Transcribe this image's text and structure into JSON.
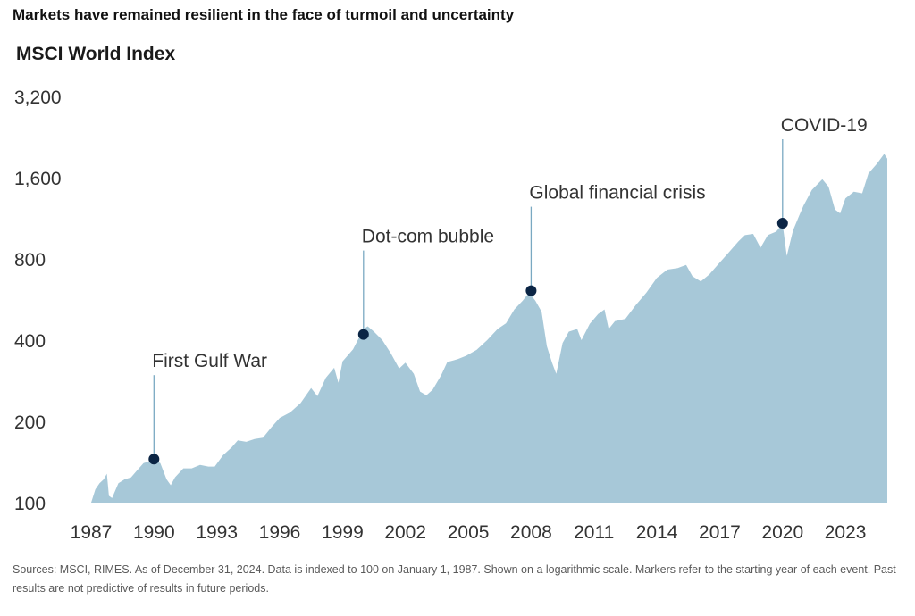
{
  "header": {
    "headline": "Markets have remained resilient in the face of turmoil and uncertainty",
    "subtitle": "MSCI World Index"
  },
  "footer": {
    "source": "Sources: MSCI, RIMES. As of December 31, 2024. Data is indexed to 100 on January 1, 1987. Shown on a logarithmic scale. Markers refer to the starting year of each event. Past results are not predictive of results in future periods."
  },
  "colors": {
    "area_fill": "#a7c8d8",
    "marker": "#0b2545",
    "leader_line": "#7aa9c2",
    "axis_text": "#333333"
  },
  "chart_data": {
    "type": "area",
    "title": "MSCI World Index",
    "xlabel": "",
    "ylabel": "",
    "y_scale": "log",
    "ylim": [
      100,
      3200
    ],
    "xlim": [
      1987,
      2025
    ],
    "grid": false,
    "y_ticks": [
      100,
      200,
      400,
      800,
      1600,
      3200
    ],
    "y_tick_labels": [
      "100",
      "200",
      "400",
      "800",
      "1,600",
      "3,200"
    ],
    "x_ticks": [
      1987,
      1990,
      1993,
      1996,
      1999,
      2002,
      2005,
      2008,
      2011,
      2014,
      2017,
      2020,
      2023
    ],
    "x_tick_labels": [
      "1987",
      "1990",
      "1993",
      "1996",
      "1999",
      "2002",
      "2005",
      "2008",
      "2011",
      "2014",
      "2017",
      "2020",
      "2023"
    ],
    "series": [
      {
        "points": [
          [
            1987.0,
            100
          ],
          [
            1987.2,
            112
          ],
          [
            1987.4,
            118
          ],
          [
            1987.6,
            122
          ],
          [
            1987.75,
            128
          ],
          [
            1987.85,
            106
          ],
          [
            1988.0,
            104
          ],
          [
            1988.3,
            118
          ],
          [
            1988.6,
            122
          ],
          [
            1988.9,
            124
          ],
          [
            1989.2,
            132
          ],
          [
            1989.5,
            140
          ],
          [
            1989.75,
            142
          ],
          [
            1990.0,
            144
          ],
          [
            1990.3,
            140
          ],
          [
            1990.6,
            122
          ],
          [
            1990.8,
            116
          ],
          [
            1991.0,
            124
          ],
          [
            1991.4,
            134
          ],
          [
            1991.8,
            134
          ],
          [
            1992.2,
            138
          ],
          [
            1992.6,
            136
          ],
          [
            1992.9,
            136
          ],
          [
            1993.3,
            150
          ],
          [
            1993.7,
            160
          ],
          [
            1994.0,
            170
          ],
          [
            1994.4,
            168
          ],
          [
            1994.8,
            172
          ],
          [
            1995.2,
            174
          ],
          [
            1995.6,
            190
          ],
          [
            1996.0,
            206
          ],
          [
            1996.5,
            216
          ],
          [
            1997.0,
            234
          ],
          [
            1997.5,
            266
          ],
          [
            1997.8,
            248
          ],
          [
            1998.2,
            290
          ],
          [
            1998.6,
            316
          ],
          [
            1998.8,
            278
          ],
          [
            1999.0,
            334
          ],
          [
            1999.5,
            370
          ],
          [
            2000.0,
            440
          ],
          [
            2000.2,
            450
          ],
          [
            2000.5,
            430
          ],
          [
            2000.9,
            400
          ],
          [
            2001.3,
            358
          ],
          [
            2001.7,
            314
          ],
          [
            2002.0,
            330
          ],
          [
            2002.4,
            300
          ],
          [
            2002.7,
            258
          ],
          [
            2003.0,
            250
          ],
          [
            2003.3,
            262
          ],
          [
            2003.7,
            296
          ],
          [
            2004.0,
            332
          ],
          [
            2004.5,
            340
          ],
          [
            2004.9,
            350
          ],
          [
            2005.4,
            368
          ],
          [
            2005.9,
            400
          ],
          [
            2006.4,
            440
          ],
          [
            2006.8,
            462
          ],
          [
            2007.2,
            520
          ],
          [
            2007.6,
            560
          ],
          [
            2007.9,
            600
          ],
          [
            2008.2,
            560
          ],
          [
            2008.5,
            510
          ],
          [
            2008.75,
            380
          ],
          [
            2009.0,
            330
          ],
          [
            2009.2,
            300
          ],
          [
            2009.5,
            390
          ],
          [
            2009.8,
            430
          ],
          [
            2010.2,
            440
          ],
          [
            2010.4,
            400
          ],
          [
            2010.8,
            460
          ],
          [
            2011.2,
            500
          ],
          [
            2011.5,
            520
          ],
          [
            2011.7,
            440
          ],
          [
            2012.0,
            470
          ],
          [
            2012.5,
            480
          ],
          [
            2013.0,
            540
          ],
          [
            2013.5,
            600
          ],
          [
            2014.0,
            680
          ],
          [
            2014.5,
            730
          ],
          [
            2015.0,
            740
          ],
          [
            2015.4,
            760
          ],
          [
            2015.7,
            690
          ],
          [
            2016.1,
            660
          ],
          [
            2016.5,
            700
          ],
          [
            2016.9,
            760
          ],
          [
            2017.4,
            840
          ],
          [
            2017.9,
            930
          ],
          [
            2018.2,
            980
          ],
          [
            2018.6,
            990
          ],
          [
            2018.95,
            880
          ],
          [
            2019.3,
            980
          ],
          [
            2019.7,
            1010
          ],
          [
            2020.0,
            1080
          ],
          [
            2020.2,
            820
          ],
          [
            2020.5,
            1020
          ],
          [
            2020.8,
            1160
          ],
          [
            2021.0,
            1260
          ],
          [
            2021.4,
            1440
          ],
          [
            2021.9,
            1580
          ],
          [
            2022.2,
            1480
          ],
          [
            2022.5,
            1220
          ],
          [
            2022.75,
            1180
          ],
          [
            2023.0,
            1340
          ],
          [
            2023.4,
            1420
          ],
          [
            2023.8,
            1400
          ],
          [
            2024.1,
            1660
          ],
          [
            2024.5,
            1800
          ],
          [
            2024.85,
            1960
          ],
          [
            2025.0,
            1880
          ]
        ]
      }
    ],
    "annotations": [
      {
        "label": "First Gulf War",
        "year": 1990.0,
        "value": 145
      },
      {
        "label": "Dot-com bubble",
        "year": 2000.0,
        "value": 420
      },
      {
        "label": "Global financial crisis",
        "year": 2008.0,
        "value": 610
      },
      {
        "label": "COVID-19",
        "year": 2020.0,
        "value": 1085
      }
    ]
  }
}
